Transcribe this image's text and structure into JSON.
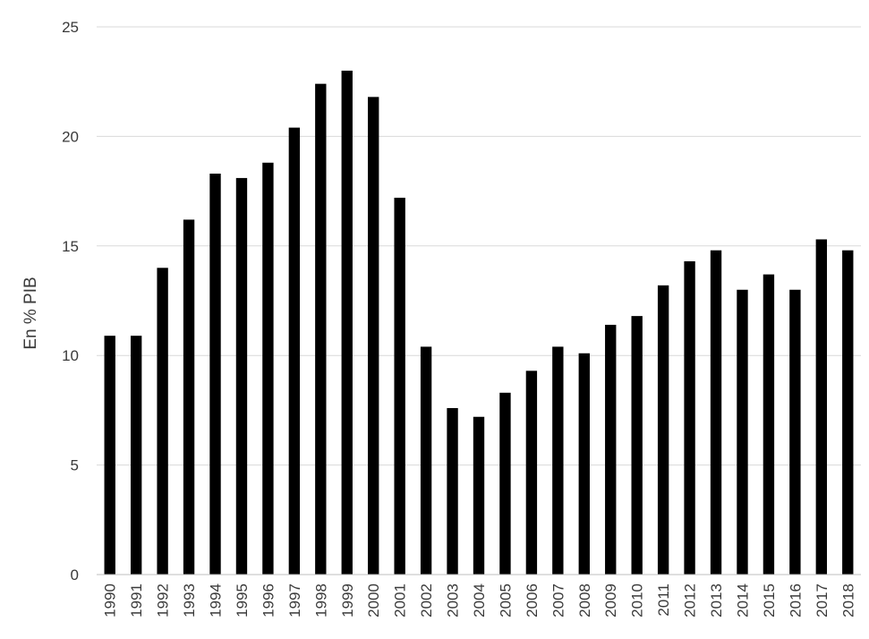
{
  "chart_data": {
    "type": "bar",
    "title": "",
    "xlabel": "",
    "ylabel": "En % PIB",
    "ylim": [
      0,
      25
    ],
    "yticks": [
      0,
      5,
      10,
      15,
      20,
      25
    ],
    "grid": true,
    "colors": {
      "bar": "#000000",
      "grid": "#d9d9d9",
      "text": "#3a3a3a"
    },
    "categories": [
      "1990",
      "1991",
      "1992",
      "1993",
      "1994",
      "1995",
      "1996",
      "1997",
      "1998",
      "1999",
      "2000",
      "2001",
      "2002",
      "2003",
      "2004",
      "2005",
      "2006",
      "2007",
      "2008",
      "2009",
      "2010",
      "2011",
      "2012",
      "2013",
      "2014",
      "2015",
      "2016",
      "2017",
      "2018"
    ],
    "values": [
      10.9,
      10.9,
      14.0,
      16.2,
      18.3,
      18.1,
      18.8,
      20.4,
      22.4,
      23.0,
      21.8,
      17.2,
      10.4,
      7.6,
      7.2,
      8.3,
      9.3,
      10.4,
      10.1,
      11.4,
      11.8,
      13.2,
      14.3,
      14.8,
      13.0,
      13.7,
      13.0,
      15.3,
      14.8
    ]
  }
}
